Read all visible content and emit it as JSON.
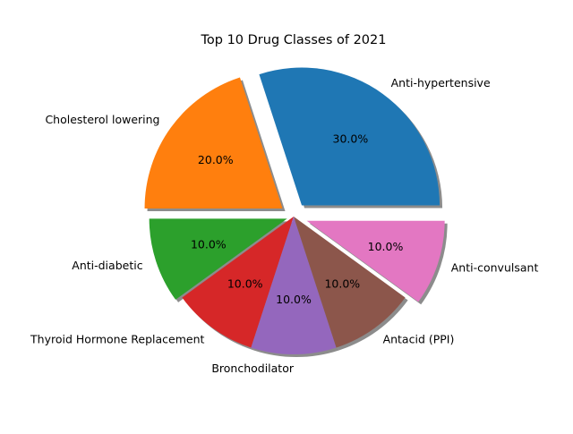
{
  "chart_data": {
    "type": "pie",
    "title": "Top 10 Drug Classes of 2021",
    "labels": [
      "Anti-hypertensive",
      "Cholesterol lowering",
      "Anti-diabetic",
      "Thyroid Hormone Replacement",
      "Bronchodilator",
      "Antacid (PPI)",
      "Anti-convulsant"
    ],
    "values": [
      30.0,
      20.0,
      10.0,
      10.0,
      10.0,
      10.0,
      10.0
    ],
    "value_labels": [
      "30.0%",
      "20.0%",
      "10.0%",
      "10.0%",
      "10.0%",
      "10.0%",
      "10.0%"
    ],
    "colors": [
      "#1f77b4",
      "#ff7f0e",
      "#2ca02c",
      "#d62728",
      "#9467bd",
      "#8c564b",
      "#e377c2"
    ],
    "explode": [
      0.1,
      0.1,
      0.05,
      0,
      0,
      0,
      0.1
    ],
    "start_angle": 0,
    "direction": "counterclockwise",
    "shadow": true,
    "legend": "none"
  }
}
